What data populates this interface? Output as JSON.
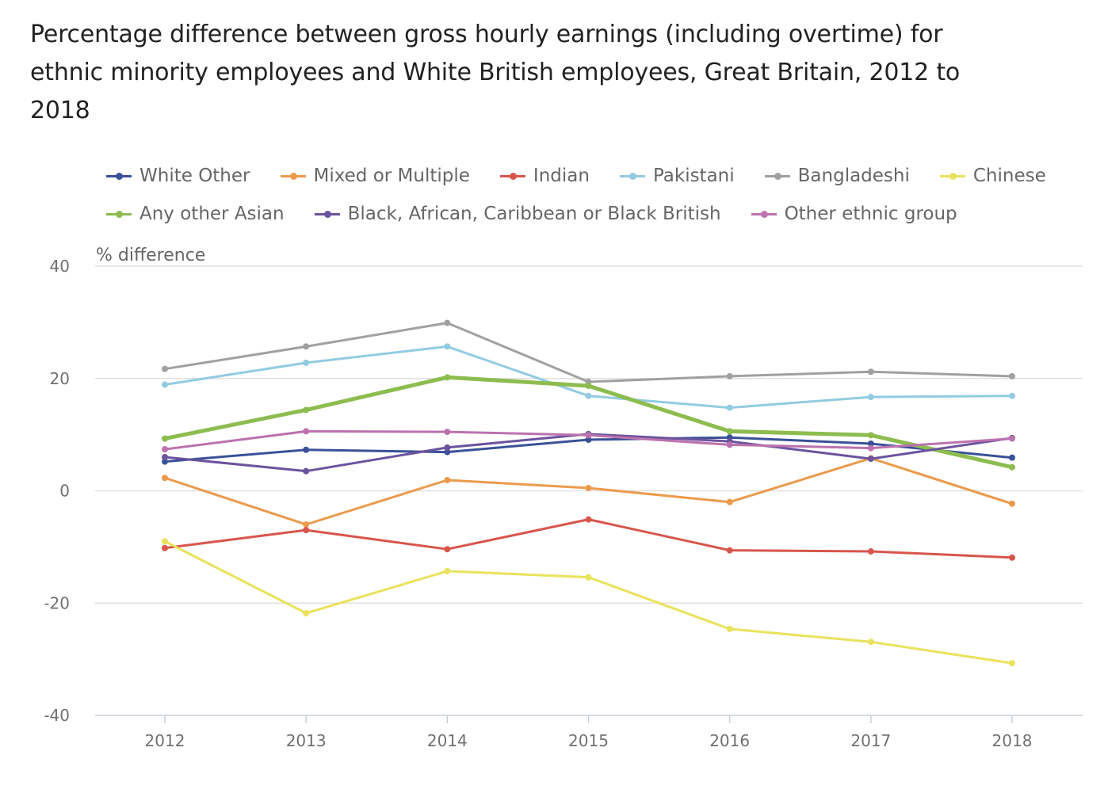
{
  "chart_data": {
    "type": "line",
    "title": "Percentage difference between gross hourly earnings (including overtime) for ethnic minority employees and White British employees, Great Britain, 2012 to 2018",
    "xlabel": "",
    "ylabel": "% difference",
    "categories": [
      "2012",
      "2013",
      "2014",
      "2015",
      "2016",
      "2017",
      "2018"
    ],
    "ylim": [
      -40,
      40
    ],
    "yticks": [
      -40,
      -20,
      0,
      20,
      40
    ],
    "ytick_labels": [
      "-40",
      "-20",
      "0",
      "20",
      "40"
    ],
    "grid": true,
    "legend_position": "top",
    "series": [
      {
        "name": "White Other",
        "color": "#3a5198",
        "values": [
          5.2,
          7.3,
          6.9,
          9.1,
          9.5,
          8.4,
          5.9
        ],
        "width": 3
      },
      {
        "name": "Mixed or Multiple",
        "color": "#eb9a4c",
        "values": [
          2.3,
          -6.0,
          1.9,
          0.5,
          -2.0,
          5.8,
          -2.3
        ],
        "width": 3
      },
      {
        "name": "Indian",
        "color": "#d8554c",
        "values": [
          -10.2,
          -7.0,
          -10.4,
          -5.1,
          -10.6,
          -10.8,
          -11.9
        ],
        "width": 3
      },
      {
        "name": "Pakistani",
        "color": "#92cbe1",
        "values": [
          18.9,
          22.8,
          25.7,
          16.9,
          14.8,
          16.7,
          16.9
        ],
        "width": 3
      },
      {
        "name": "Bangladeshi",
        "color": "#a0a0a0",
        "values": [
          21.7,
          25.7,
          29.9,
          19.4,
          20.4,
          21.2,
          20.4
        ],
        "width": 3
      },
      {
        "name": "Chinese",
        "color": "#e9e25c",
        "values": [
          -9.0,
          -21.8,
          -14.3,
          -15.4,
          -24.6,
          -26.9,
          -30.7
        ],
        "width": 3
      },
      {
        "name": "Any other Asian",
        "color": "#8dbc4f",
        "values": [
          9.3,
          14.4,
          20.2,
          18.7,
          10.6,
          9.9,
          4.2
        ],
        "width": 5
      },
      {
        "name": "Black, African, Caribbean or Black British",
        "color": "#6b539e",
        "values": [
          6.0,
          3.5,
          7.7,
          10.1,
          8.8,
          5.7,
          9.4
        ],
        "width": 3
      },
      {
        "name": "Other ethnic group",
        "color": "#bb72ae",
        "values": [
          7.4,
          10.6,
          10.5,
          9.9,
          8.2,
          7.6,
          9.3
        ],
        "width": 3
      }
    ]
  }
}
